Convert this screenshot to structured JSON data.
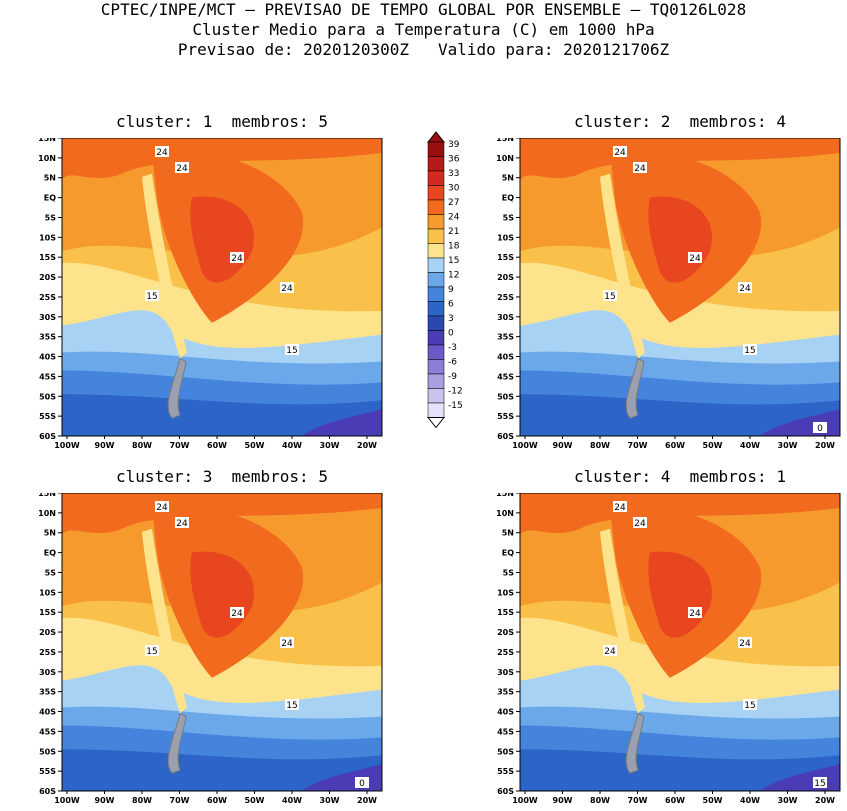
{
  "header": {
    "line1": "CPTEC/INPE/MCT – PREVISAO DE TEMPO GLOBAL POR ENSEMBLE – TQ0126L028",
    "line2": "Cluster Medio para a Temperatura (C) em 1000 hPa",
    "line3": "Previsao de: 2020120300Z   Valido para: 2020121706Z"
  },
  "panels": [
    {
      "title": "cluster: 1  membros: 5",
      "contours": [
        "24",
        "24",
        "24",
        "24",
        "15",
        "15"
      ]
    },
    {
      "title": "cluster: 2  membros: 4",
      "contours": [
        "24",
        "24",
        "24",
        "24",
        "15",
        "15",
        "0"
      ]
    },
    {
      "title": "cluster: 3  membros: 5",
      "contours": [
        "24",
        "24",
        "24",
        "24",
        "15",
        "15",
        "0"
      ]
    },
    {
      "title": "cluster: 4  membros: 1",
      "contours": [
        "24",
        "24",
        "24",
        "24",
        "24",
        "15",
        "15"
      ]
    }
  ],
  "axes": {
    "lat_labels": [
      "15N",
      "10N",
      "5N",
      "EQ",
      "5S",
      "10S",
      "15S",
      "20S",
      "25S",
      "30S",
      "35S",
      "40S",
      "45S",
      "50S",
      "55S",
      "60S"
    ],
    "lon_labels": [
      "100W",
      "90W",
      "80W",
      "70W",
      "60W",
      "50W",
      "40W",
      "30W",
      "20W"
    ]
  },
  "colorbar": {
    "labels": [
      "39",
      "36",
      "33",
      "30",
      "27",
      "24",
      "21",
      "18",
      "15",
      "12",
      "9",
      "6",
      "3",
      "0",
      "-3",
      "-6",
      "-9",
      "-12",
      "-15"
    ],
    "colors": [
      "#9a1010",
      "#b61a1a",
      "#d22a1e",
      "#e8461e",
      "#f26a1e",
      "#f69a2e",
      "#f9c14a",
      "#fde38c",
      "#a8d2f4",
      "#6aa8ea",
      "#4584dc",
      "#2d64c8",
      "#2a48b0",
      "#4a3cb4",
      "#6a5ac8",
      "#8c7ed6",
      "#ab9fe2",
      "#cbc3ee",
      "#e6e0f8"
    ]
  }
}
